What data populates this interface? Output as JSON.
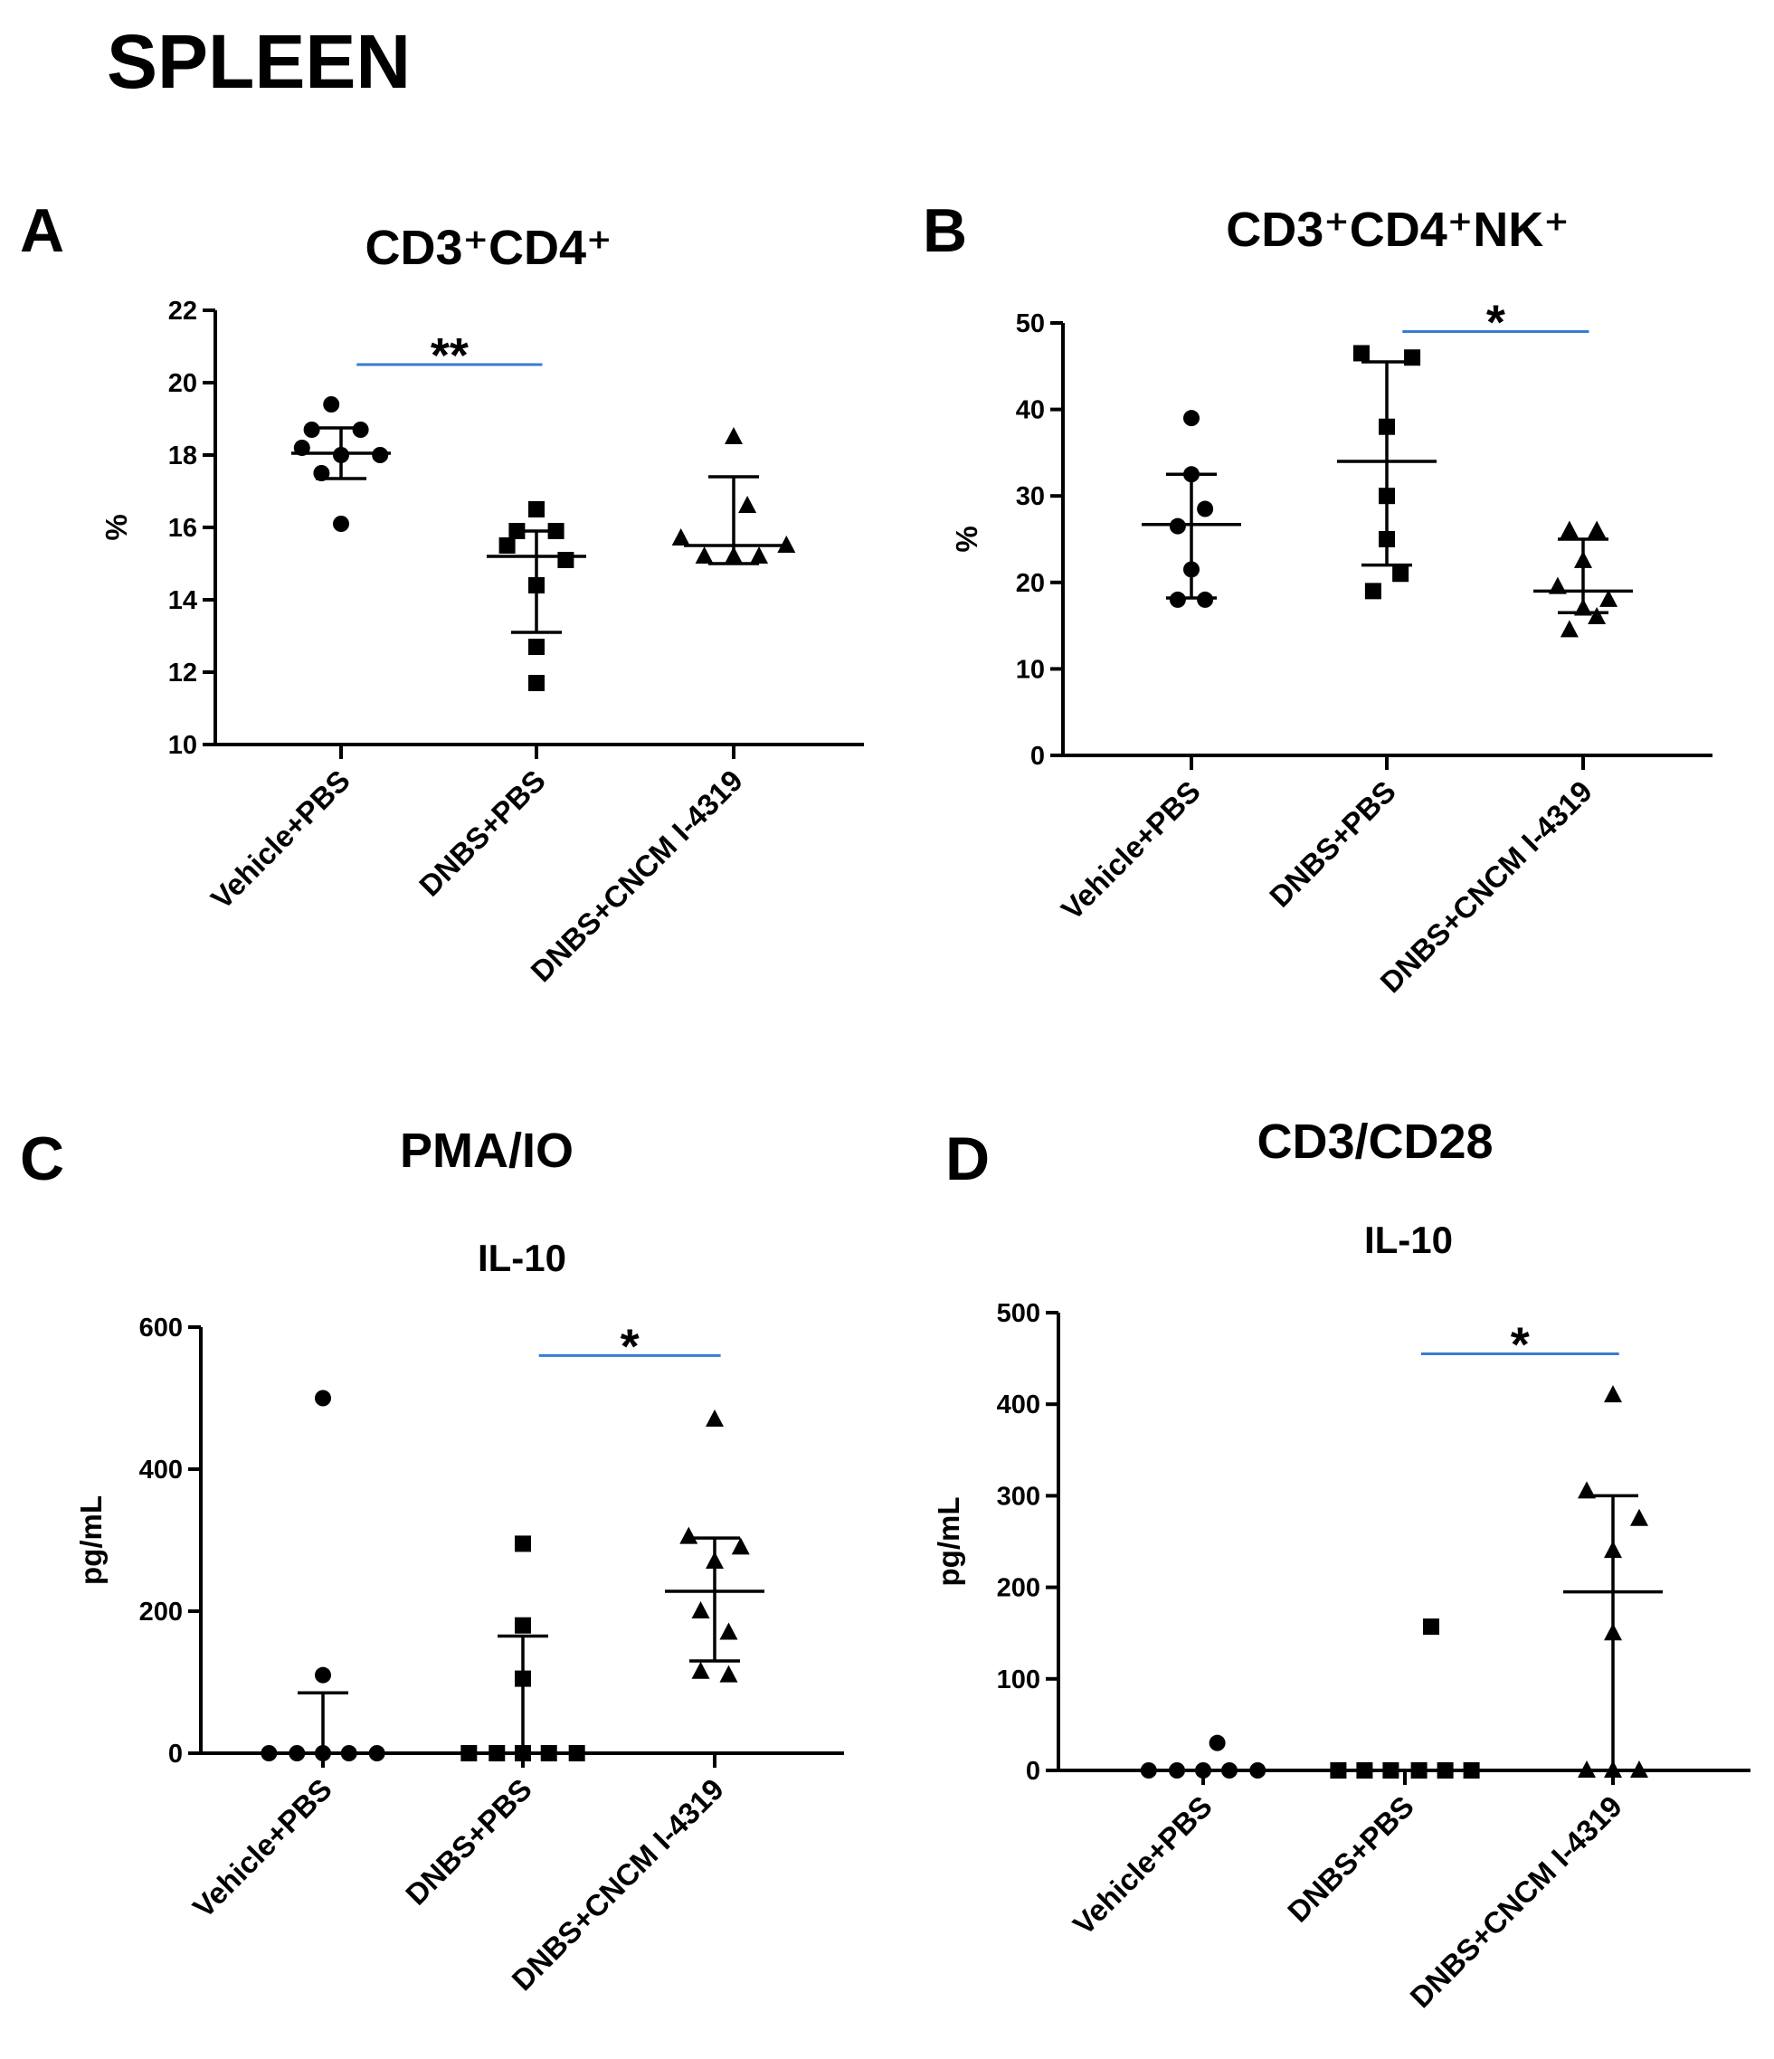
{
  "figure_title": "SPLEEN",
  "colors": {
    "points": "#000000",
    "axes": "#000000",
    "significance_bar": "#3a7bd5"
  },
  "chart_data": [
    {
      "panel": "A",
      "type": "scatter",
      "title": "CD3⁺CD4⁺",
      "subtitle": "",
      "ylabel": "%",
      "xlabel": "",
      "ylim": [
        10,
        22
      ],
      "yticks": [
        10,
        12,
        14,
        16,
        18,
        20,
        22
      ],
      "categories": [
        "Vehicle+PBS",
        "DNBS+PBS",
        "DNBS+CNCM I-4319"
      ],
      "series": [
        {
          "group": "Vehicle+PBS",
          "marker": "circle",
          "points": [
            [
              -0.05,
              19.4
            ],
            [
              -0.15,
              18.7
            ],
            [
              0.1,
              18.7
            ],
            [
              -0.2,
              18.2
            ],
            [
              0.0,
              18.0
            ],
            [
              0.2,
              18.0
            ],
            [
              -0.1,
              17.5
            ],
            [
              0.0,
              16.1
            ]
          ],
          "center": 18.05,
          "err_low": 17.35,
          "err_high": 18.75
        },
        {
          "group": "DNBS+PBS",
          "marker": "square",
          "points": [
            [
              0.0,
              16.5
            ],
            [
              -0.1,
              15.9
            ],
            [
              0.1,
              15.9
            ],
            [
              -0.15,
              15.5
            ],
            [
              0.15,
              15.1
            ],
            [
              0.0,
              14.4
            ],
            [
              0.0,
              12.7
            ],
            [
              0.0,
              11.7
            ]
          ],
          "center": 15.2,
          "err_low": 13.1,
          "err_high": 15.9
        },
        {
          "group": "DNBS+CNCM I-4319",
          "marker": "triangle",
          "points": [
            [
              0.0,
              18.5
            ],
            [
              0.07,
              16.6
            ],
            [
              -0.27,
              15.7
            ],
            [
              0.27,
              15.5
            ],
            [
              -0.15,
              15.2
            ],
            [
              0.0,
              15.2
            ],
            [
              0.13,
              15.2
            ]
          ],
          "center": 15.5,
          "err_low": 15.0,
          "err_high": 17.4
        }
      ],
      "significance": {
        "from": 0,
        "to": 1,
        "y": 20.5,
        "label": "**"
      }
    },
    {
      "panel": "B",
      "type": "scatter",
      "title": "CD3⁺CD4⁺NK⁺",
      "subtitle": "",
      "ylabel": "%",
      "xlabel": "",
      "ylim": [
        0,
        50
      ],
      "yticks": [
        0,
        10,
        20,
        30,
        40,
        50
      ],
      "categories": [
        "Vehicle+PBS",
        "DNBS+PBS",
        "DNBS+CNCM I-4319"
      ],
      "series": [
        {
          "group": "Vehicle+PBS",
          "marker": "circle",
          "points": [
            [
              0.0,
              39
            ],
            [
              0.0,
              32.5
            ],
            [
              0.07,
              28.5
            ],
            [
              -0.07,
              26.5
            ],
            [
              0.0,
              21.5
            ],
            [
              -0.07,
              18.0
            ],
            [
              0.07,
              18.0
            ]
          ],
          "center": 26.7,
          "err_low": 18.2,
          "err_high": 32.5
        },
        {
          "group": "DNBS+PBS",
          "marker": "square",
          "points": [
            [
              -0.13,
              46.5
            ],
            [
              0.13,
              46.0
            ],
            [
              0.0,
              38.0
            ],
            [
              0.0,
              30.0
            ],
            [
              0.0,
              25.0
            ],
            [
              0.07,
              21.0
            ],
            [
              -0.07,
              19.0
            ]
          ],
          "center": 34.0,
          "err_low": 22.0,
          "err_high": 45.5
        },
        {
          "group": "DNBS+CNCM I-4319",
          "marker": "triangle",
          "points": [
            [
              -0.07,
              26.0
            ],
            [
              0.07,
              26.0
            ],
            [
              0.0,
              22.5
            ],
            [
              -0.13,
              19.5
            ],
            [
              0.13,
              18.0
            ],
            [
              0.0,
              17.0
            ],
            [
              0.07,
              16.0
            ],
            [
              -0.07,
              14.5
            ]
          ],
          "center": 19.0,
          "err_low": 16.5,
          "err_high": 25.0
        }
      ],
      "significance": {
        "from": 1,
        "to": 2,
        "y": 49,
        "label": "*"
      }
    },
    {
      "panel": "C",
      "type": "scatter",
      "title": "PMA/IO",
      "subtitle": "IL-10",
      "ylabel": "pg/mL",
      "xlabel": "",
      "ylim": [
        0,
        600
      ],
      "yticks": [
        0,
        200,
        400,
        600
      ],
      "categories": [
        "Vehicle+PBS",
        "DNBS+PBS",
        "DNBS+CNCM I-4319"
      ],
      "series": [
        {
          "group": "Vehicle+PBS",
          "marker": "circle",
          "points": [
            [
              0.0,
              500
            ],
            [
              0.0,
              110
            ],
            [
              -0.27,
              0
            ],
            [
              -0.13,
              0
            ],
            [
              0.0,
              0
            ],
            [
              0.13,
              0
            ],
            [
              0.27,
              0
            ]
          ],
          "center": 0,
          "err_low": 0,
          "err_high": 85
        },
        {
          "group": "DNBS+PBS",
          "marker": "square",
          "points": [
            [
              0.0,
              295
            ],
            [
              0.0,
              180
            ],
            [
              0.0,
              105
            ],
            [
              -0.27,
              0
            ],
            [
              -0.13,
              0
            ],
            [
              0.0,
              0
            ],
            [
              0.13,
              0
            ],
            [
              0.27,
              0
            ]
          ],
          "center": 0,
          "err_low": 0,
          "err_high": 165
        },
        {
          "group": "DNBS+CNCM I-4319",
          "marker": "triangle",
          "points": [
            [
              0.0,
              470
            ],
            [
              -0.13,
              305
            ],
            [
              0.13,
              290
            ],
            [
              0.0,
              270
            ],
            [
              -0.07,
              200
            ],
            [
              0.07,
              170
            ],
            [
              -0.07,
              115
            ],
            [
              0.07,
              110
            ]
          ],
          "center": 228,
          "err_low": 130,
          "err_high": 303
        }
      ],
      "significance": {
        "from": 1,
        "to": 2,
        "y": 560,
        "label": "*"
      }
    },
    {
      "panel": "D",
      "type": "scatter",
      "title": "CD3/CD28",
      "subtitle": "IL-10",
      "ylabel": "pg/mL",
      "xlabel": "",
      "ylim": [
        0,
        500
      ],
      "yticks": [
        0,
        100,
        200,
        300,
        400,
        500
      ],
      "categories": [
        "Vehicle+PBS",
        "DNBS+PBS",
        "DNBS+CNCM I-4319"
      ],
      "series": [
        {
          "group": "Vehicle+PBS",
          "marker": "circle",
          "points": [
            [
              0.07,
              30
            ],
            [
              -0.27,
              0
            ],
            [
              -0.13,
              0
            ],
            [
              0.0,
              0
            ],
            [
              0.13,
              0
            ],
            [
              0.27,
              0
            ]
          ],
          "center": 0,
          "err_low": 0,
          "err_high": 0
        },
        {
          "group": "DNBS+PBS",
          "marker": "square",
          "points": [
            [
              0.13,
              157
            ],
            [
              -0.33,
              0
            ],
            [
              -0.2,
              0
            ],
            [
              -0.07,
              0
            ],
            [
              0.07,
              0
            ],
            [
              0.2,
              0
            ],
            [
              0.33,
              0
            ]
          ],
          "center": 0,
          "err_low": 0,
          "err_high": 0
        },
        {
          "group": "DNBS+CNCM I-4319",
          "marker": "triangle",
          "points": [
            [
              0.0,
              410
            ],
            [
              -0.13,
              305
            ],
            [
              0.13,
              275
            ],
            [
              0.0,
              240
            ],
            [
              0.0,
              150
            ],
            [
              -0.13,
              0
            ],
            [
              0.0,
              0
            ],
            [
              0.13,
              0
            ]
          ],
          "center": 195,
          "err_low": 0,
          "err_high": 300
        }
      ],
      "significance": {
        "from": 1,
        "to": 2,
        "y": 455,
        "label": "*"
      }
    }
  ]
}
